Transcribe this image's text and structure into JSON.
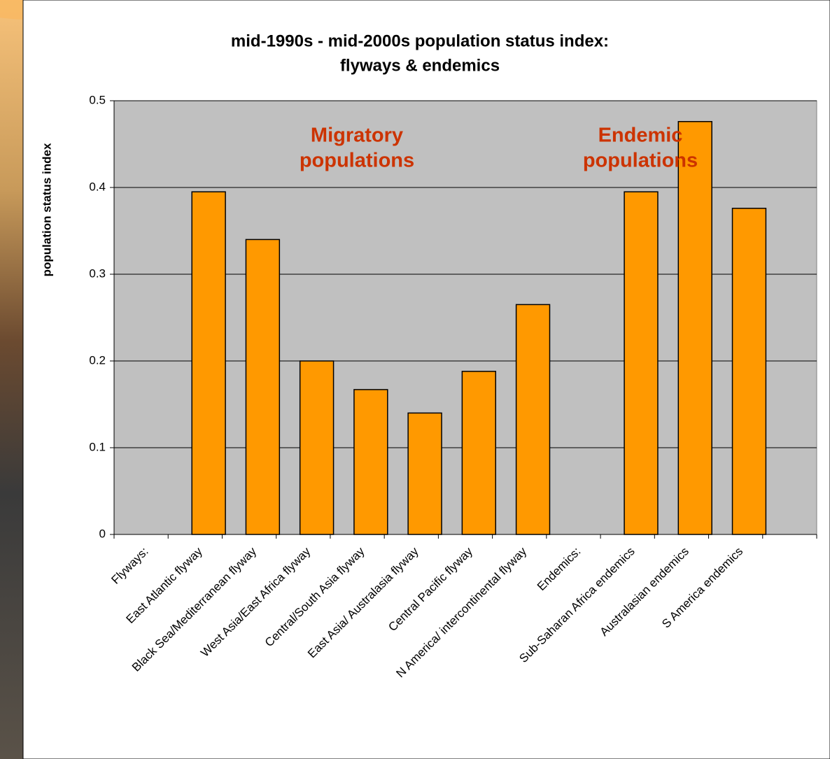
{
  "chart_data": {
    "type": "bar",
    "title": [
      "mid-1990s - mid-2000s population status index:",
      "flyways & endemics"
    ],
    "y_label": "population status index",
    "annotations": [
      [
        "Migratory",
        "populations"
      ],
      [
        "Endemic",
        "populations"
      ]
    ],
    "categories": [
      "Flyways:",
      "East Atlantic flyway",
      "Black Sea/Mediterranean flyway",
      "West Asia/East Africa flyway",
      "Central/South Asia flyway",
      "East Asia/ Australasia  flyway",
      "Central Pacific flyway",
      "N America/ intercontinental flyway",
      "Endemics:",
      "Sub-Saharan Africa endemics",
      "Australasian endemics",
      "S America endemics"
    ],
    "values": [
      null,
      0.395,
      0.34,
      0.2,
      0.167,
      0.14,
      0.188,
      0.265,
      null,
      0.395,
      0.476,
      0.376
    ],
    "color": "#ff9900",
    "annotation_color": "#cc3300",
    "plot_background": "#c0c0c0",
    "ylim": [
      0,
      0.5
    ],
    "yticks": [
      0,
      0.1,
      0.2,
      0.3,
      0.4,
      0.5
    ],
    "grid": true
  }
}
